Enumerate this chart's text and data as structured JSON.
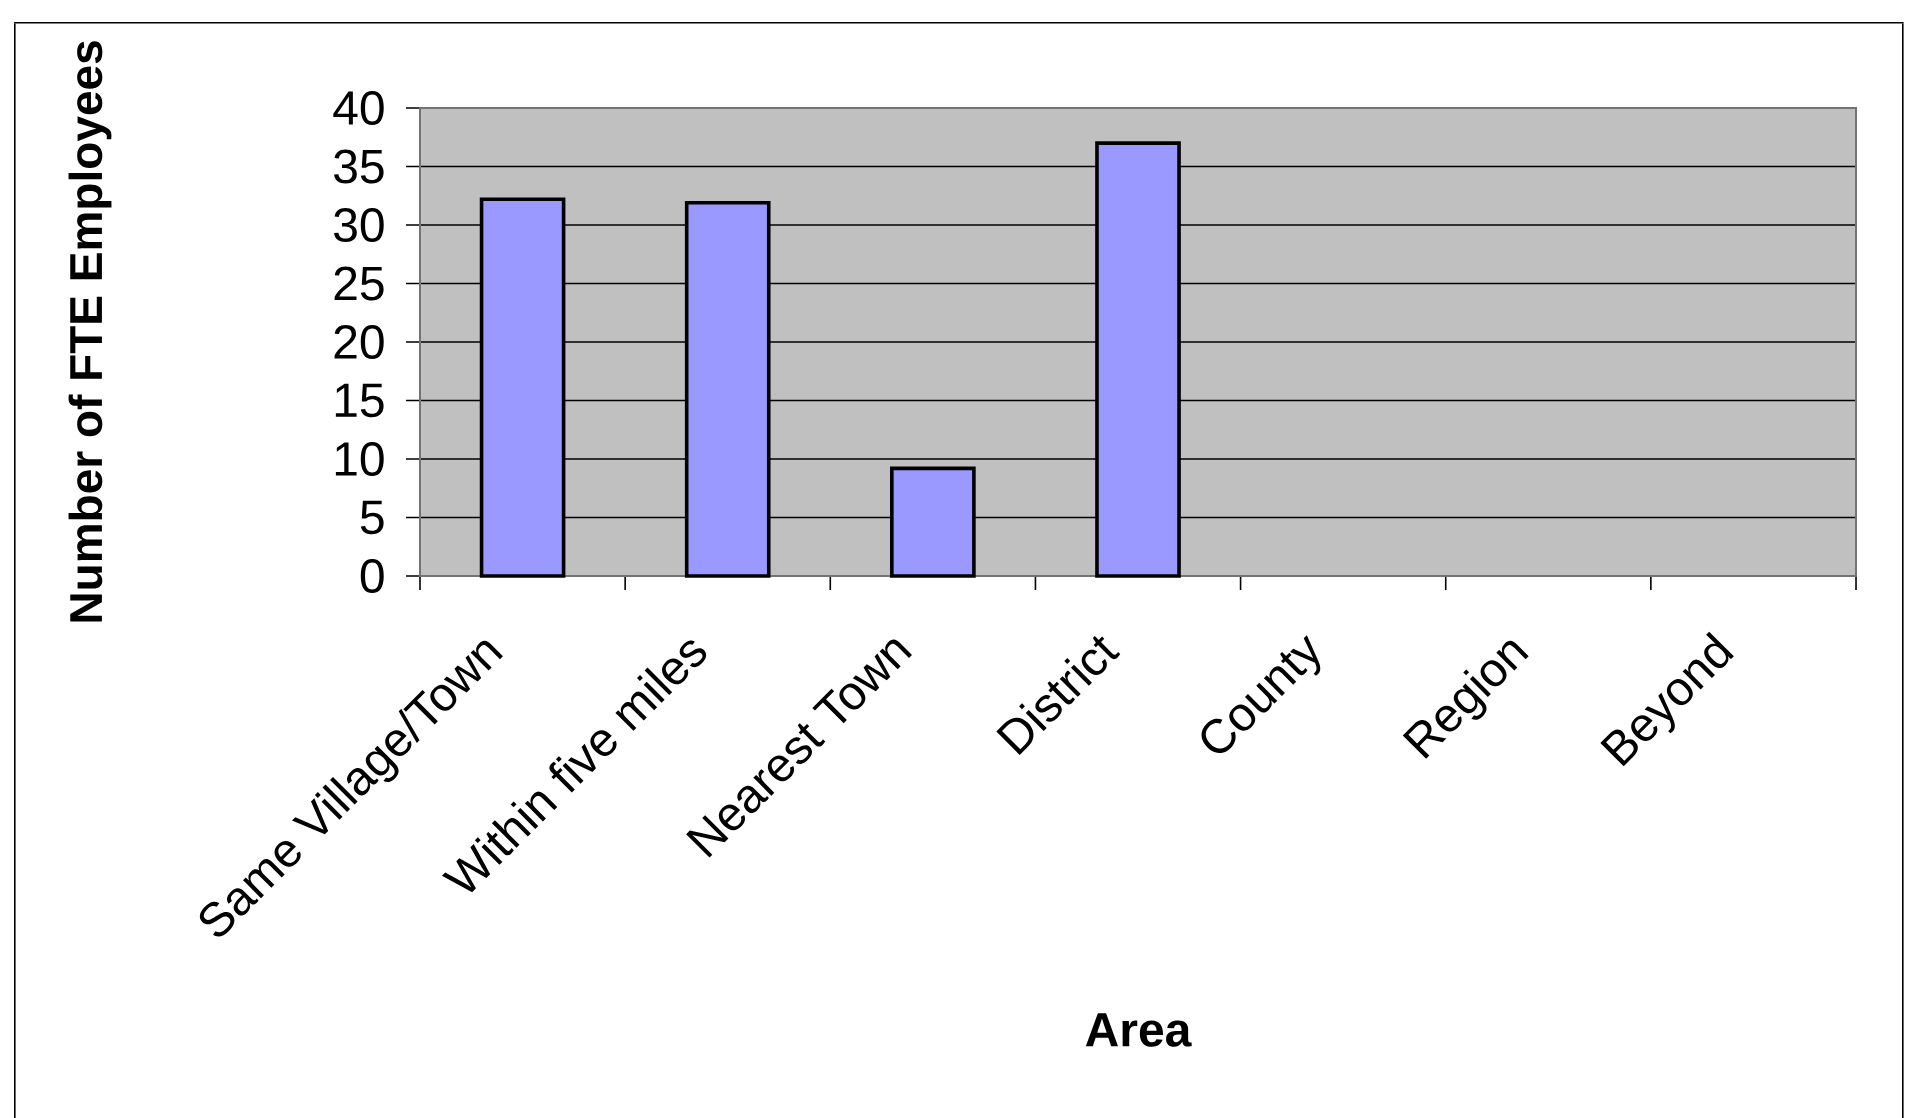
{
  "chart_data": {
    "type": "bar",
    "categories": [
      "Same Village/Town",
      "Within five miles",
      "Nearest Town",
      "District",
      "County",
      "Region",
      "Beyond"
    ],
    "values": [
      32.2,
      31.9,
      9.2,
      37,
      null,
      null,
      null
    ],
    "color": "#9999ff",
    "xlabel": "Area",
    "ylabel": "Number of FTE Employees",
    "ylim": [
      0,
      40
    ],
    "yticks": [
      0,
      5,
      10,
      15,
      20,
      25,
      30,
      35,
      40
    ],
    "grid": "y"
  }
}
